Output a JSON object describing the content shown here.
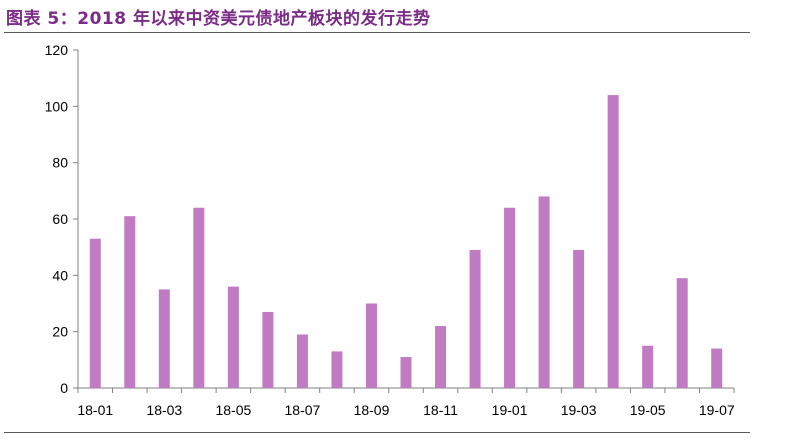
{
  "title": "图表 5：2018 年以来中资美元债地产板块的发行走势",
  "colors": {
    "bar": "#C07BC3",
    "title": "#7B2C86",
    "axis": "#808080"
  },
  "chart_data": {
    "type": "bar",
    "categories": [
      "18-01",
      "18-02",
      "18-03",
      "18-04",
      "18-05",
      "18-06",
      "18-07",
      "18-08",
      "18-09",
      "18-10",
      "18-11",
      "18-12",
      "19-01",
      "19-02",
      "19-03",
      "19-04",
      "19-05",
      "19-06",
      "19-07"
    ],
    "x_tick_labels": [
      "18-01",
      "18-03",
      "18-05",
      "18-07",
      "18-09",
      "18-11",
      "19-01",
      "19-03",
      "19-05",
      "19-07"
    ],
    "values": [
      53,
      61,
      35,
      64,
      36,
      27,
      19,
      13,
      30,
      11,
      22,
      49,
      64,
      68,
      49,
      104,
      15,
      39,
      14
    ],
    "ylim": [
      0,
      120
    ],
    "yticks": [
      0,
      20,
      40,
      60,
      80,
      100,
      120
    ],
    "grid": false,
    "legend": "none"
  }
}
